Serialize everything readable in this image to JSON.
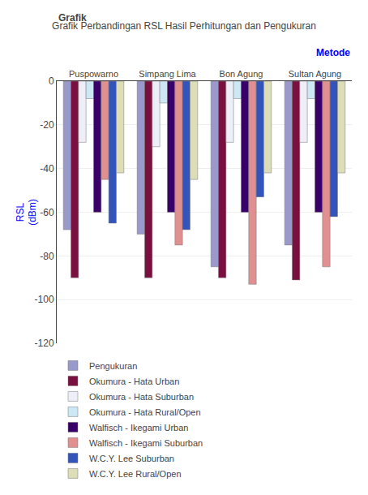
{
  "chart_data": {
    "type": "bar",
    "title": "Grafik Perbandingan RSL Hasil Perhitungan dan Pengukuran",
    "ylabel": "RSL\n(dBm)",
    "annotations": [
      "Grafik",
      "Metode"
    ],
    "categories": [
      "Puspowarno",
      "Simpang Lima",
      "Bon Agung",
      "Sultan Agung"
    ],
    "series": [
      {
        "name": "Pengukuran",
        "color": "#9999cc",
        "values": [
          -68,
          -70,
          -85,
          -75
        ]
      },
      {
        "name": "Okumura - Hata Urban",
        "color": "#7a1040",
        "values": [
          -90,
          -90,
          -90,
          -91
        ]
      },
      {
        "name": "Okumura - Hata Suburban",
        "color": "#eeeef8",
        "values": [
          -28,
          -30,
          -28,
          -28
        ]
      },
      {
        "name": "Okumura - Hata Rural/Open",
        "color": "#cce8f4",
        "values": [
          -8,
          -10,
          -8,
          -8
        ]
      },
      {
        "name": "Walfisch - Ikegami Urban",
        "color": "#3a006a",
        "values": [
          -60,
          -60,
          -60,
          -60
        ]
      },
      {
        "name": "Walfisch - Ikegami Suburban",
        "color": "#e09090",
        "values": [
          -45,
          -75,
          -93,
          -85
        ]
      },
      {
        "name": "W.C.Y. Lee Suburban",
        "color": "#3355bb",
        "values": [
          -65,
          -68,
          -53,
          -62
        ]
      },
      {
        "name": "W.C.Y. Lee Rural/Open",
        "color": "#ddddb8",
        "values": [
          -42,
          -45,
          -42,
          -42
        ]
      }
    ],
    "ylim": [
      -120,
      0
    ],
    "yticks": [
      0,
      -20,
      -40,
      -60,
      -80,
      -100,
      -120
    ],
    "grid": true,
    "legend": "bottom"
  }
}
